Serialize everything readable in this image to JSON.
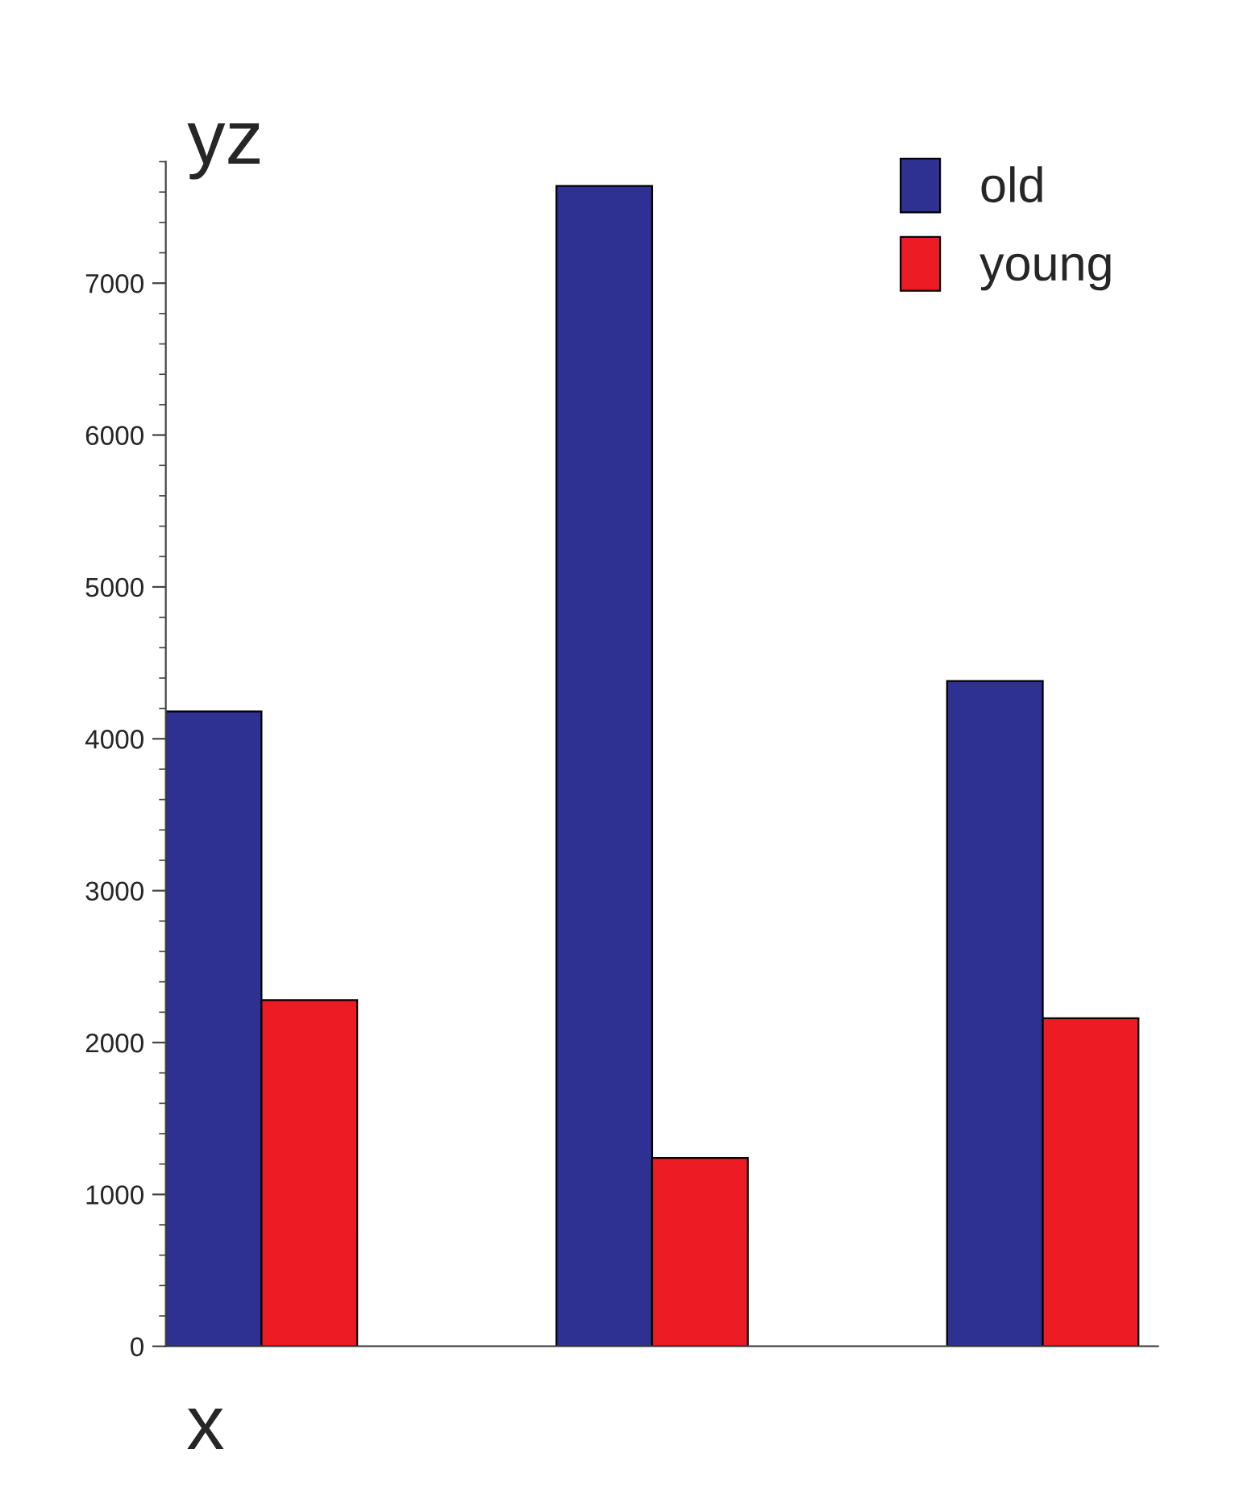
{
  "chart_data": {
    "type": "bar",
    "xlabel": "x",
    "ylabel": "yz",
    "categories": [
      null,
      null,
      null
    ],
    "series": [
      {
        "name": "old",
        "color": "#2e3192",
        "values": [
          4180,
          7640,
          4380
        ]
      },
      {
        "name": "young",
        "color": "#ed1c24",
        "values": [
          2280,
          1240,
          2160
        ]
      }
    ],
    "ylim": [
      0,
      7800
    ],
    "yticks": [
      0,
      1000,
      2000,
      3000,
      4000,
      5000,
      6000,
      7000
    ],
    "tick_labels": "y",
    "legend": "top right",
    "grid": false
  }
}
